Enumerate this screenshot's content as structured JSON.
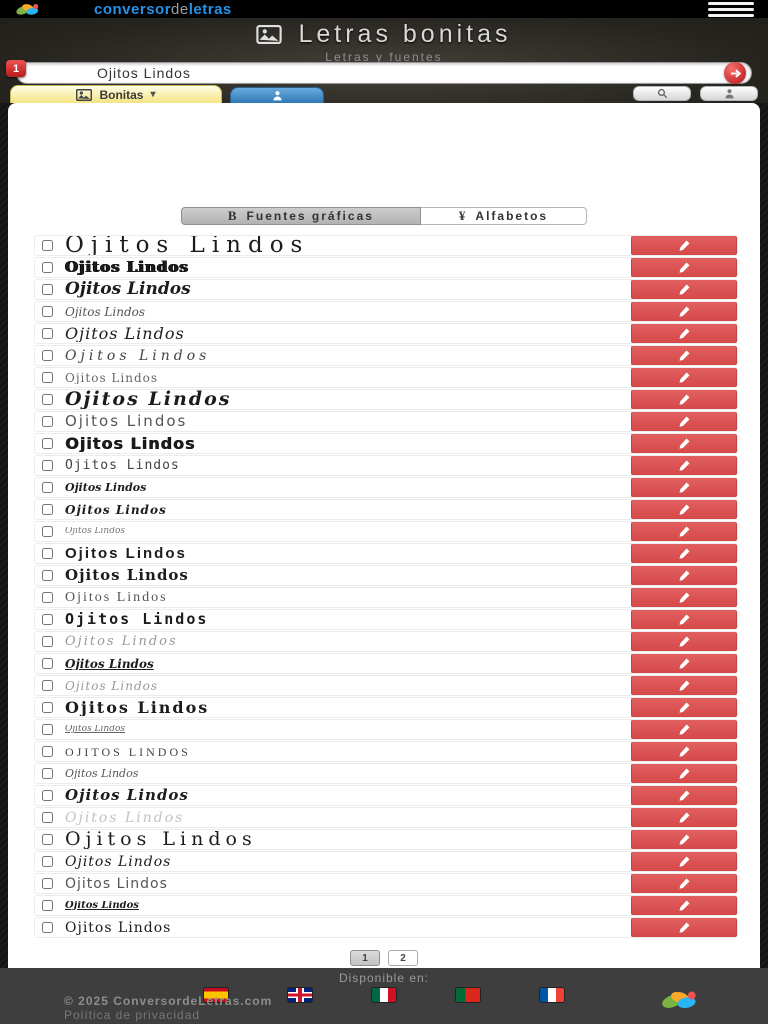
{
  "topbar": {
    "brand": {
      "part1": "conversor",
      "part2": "de",
      "part3": "letras"
    }
  },
  "header": {
    "title": "Letras bonitas",
    "subtitle": "Letras y fuentes"
  },
  "search": {
    "value": "Ojitos Lindos",
    "badge": "1"
  },
  "tabs": {
    "bonitas_label": "Bonitas",
    "caret": "▾"
  },
  "toolbar": {
    "tab_graficas_icon": "B",
    "tab_graficas": "Fuentes gráficas",
    "tab_alfabetos_icon": "¥",
    "tab_alfabetos": "Alfabetos"
  },
  "rows": [
    {
      "text": "Ojitos Lindos",
      "style": "s1"
    },
    {
      "text": "Ojitos Lindos",
      "style": "s2"
    },
    {
      "text": "Ojitos Lindos",
      "style": "s3"
    },
    {
      "text": "Ojitos Lindos",
      "style": "s4"
    },
    {
      "text": "Ojitos Lindos",
      "style": "s5"
    },
    {
      "text": "Ojitos Lindos",
      "style": "s6"
    },
    {
      "text": "Ojitos Lindos",
      "style": "s7"
    },
    {
      "text": "Ojitos Lindos",
      "style": "s8"
    },
    {
      "text": "Ojitos Lindos",
      "style": "s9"
    },
    {
      "text": "Ojitos Lindos",
      "style": "s10"
    },
    {
      "text": "Ojitos Lindos",
      "style": "s11"
    },
    {
      "text": "Ojitos Lindos",
      "style": "s12"
    },
    {
      "text": "Ojitos Lindos",
      "style": "s13"
    },
    {
      "text": "Ojitos Lindos",
      "style": "s14"
    },
    {
      "text": "Ojitos Lindos",
      "style": "s15"
    },
    {
      "text": "Ojitos Lindos",
      "style": "s16"
    },
    {
      "text": "Ojitos Lindos",
      "style": "s17"
    },
    {
      "text": "Ojitos Lindos",
      "style": "s18"
    },
    {
      "text": "Ojitos Lindos",
      "style": "s19"
    },
    {
      "text": "Ojitos Lindos",
      "style": "s20"
    },
    {
      "text": "Ojitos Lindos",
      "style": "s21"
    },
    {
      "text": "Ojitos Lindos",
      "style": "s22"
    },
    {
      "text": "Ojitos Lindos",
      "style": "s23"
    },
    {
      "text": "Ojitos Lindos",
      "style": "s24"
    },
    {
      "text": "Ojitos Lindos",
      "style": "s25"
    },
    {
      "text": "Ojitos Lindos",
      "style": "s26"
    },
    {
      "text": "Ojitos Lindos",
      "style": "s27"
    },
    {
      "text": "Ojitos Lindos",
      "style": "s28"
    },
    {
      "text": "Ojitos Lindos",
      "style": "s29"
    },
    {
      "text": "Ojitos Lindos",
      "style": "s30"
    },
    {
      "text": "Ojitos Lindos",
      "style": "s31"
    },
    {
      "text": "Ojitos Lindos",
      "style": "s32"
    }
  ],
  "pagination": {
    "pages": [
      "1",
      "2"
    ],
    "active_index": 0
  },
  "footer": {
    "available_label": "Disponible en:",
    "flags": [
      "spain",
      "uk",
      "mexico",
      "portugal",
      "france"
    ],
    "copyright": "© 2025 ConversordeLetras.com",
    "privacy_link": "Política de privacidad"
  },
  "colors": {
    "accent_red": "#d54848",
    "brand_blue": "#2492e8",
    "tab_yellow": "#f4e482",
    "tab_blue": "#3078b5"
  }
}
